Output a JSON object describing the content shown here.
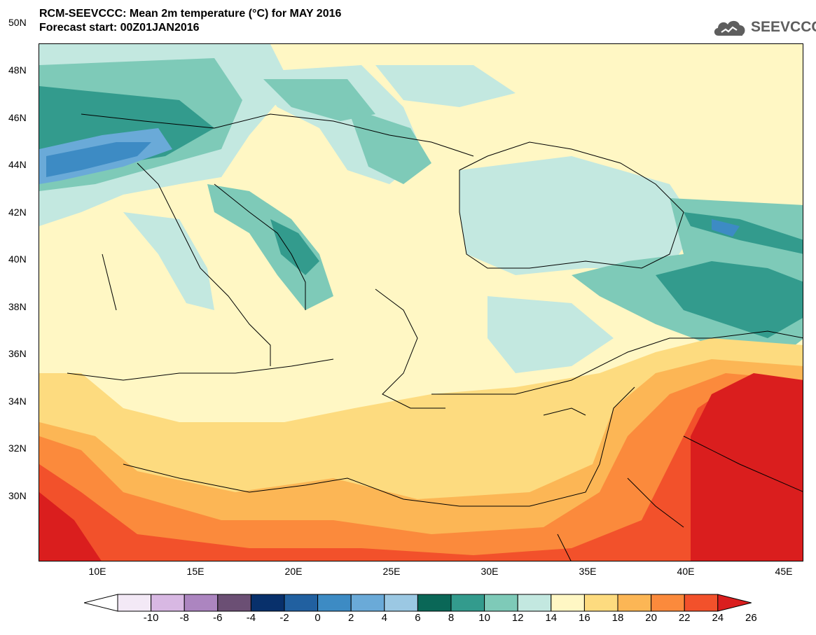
{
  "title_line1": "RCM-SEEVCCC: Mean 2m temperature (°C) for MAY 2016",
  "title_line2": "Forecast start: 00Z01JAN2016",
  "logo": {
    "text": "SEEVCCC",
    "icon": "cloud-icon",
    "color": "#5e5e5e"
  },
  "map": {
    "lon_range": [
      7,
      46
    ],
    "lat_range": [
      29,
      51
    ],
    "lat_ticks": [
      "50N",
      "48N",
      "46N",
      "44N",
      "42N",
      "40N",
      "38N",
      "36N",
      "34N",
      "32N",
      "30N"
    ],
    "lon_ticks": [
      "10E",
      "15E",
      "20E",
      "25E",
      "30E",
      "35E",
      "40E",
      "45E"
    ]
  },
  "colorbar": {
    "labels": [
      "-10",
      "-8",
      "-6",
      "-4",
      "-2",
      "0",
      "2",
      "4",
      "6",
      "8",
      "10",
      "12",
      "14",
      "16",
      "18",
      "20",
      "22",
      "24",
      "26"
    ],
    "colors": [
      "#f3e9f6",
      "#d8b8e3",
      "#ac85c0",
      "#6b4f74",
      "#08306b",
      "#2160a0",
      "#3d8bc4",
      "#6aaad8",
      "#9bc8e3",
      "#0a6757",
      "#339b8d",
      "#7ecab8",
      "#c3e8e0",
      "#fff7c4",
      "#fddb7f",
      "#fcb655",
      "#fb8a3c",
      "#f2512b",
      "#da1e1e"
    ],
    "min_color": "#ffffff",
    "max_color": "#da1e1e"
  }
}
